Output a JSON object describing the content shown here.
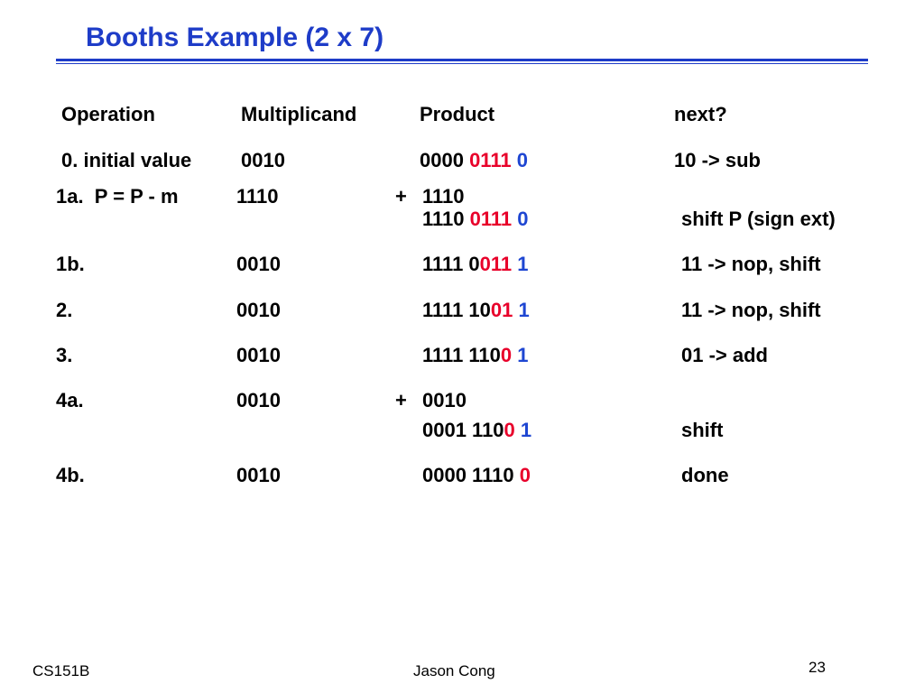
{
  "title": "Booths Example (2 x 7)",
  "table": {
    "header": [
      "Operation",
      "Multiplicand",
      "Product",
      "next?"
    ],
    "rows": [
      {
        "operation": "0. initial value",
        "multiplicand": "0010",
        "product": [
          [
            {
              "text": "0000 ",
              "color": "#000000"
            },
            {
              "text": "0111 ",
              "color": "#e8002a"
            },
            {
              "text": "0",
              "color": "#1e46d2"
            }
          ]
        ],
        "next": "10 -> sub"
      },
      {
        "operation": "1a.  P = P - m",
        "multiplicand": "1110",
        "sign": "+",
        "product": [
          [
            {
              "text": "1110",
              "color": "#000000"
            }
          ],
          [
            {
              "text": "1110 ",
              "color": "#000000"
            },
            {
              "text": "0111 ",
              "color": "#e8002a"
            },
            {
              "text": "0",
              "color": "#1e46d2"
            }
          ]
        ],
        "next": "shift P (sign ext)"
      },
      {
        "operation": "1b.",
        "multiplicand": "0010",
        "product": [
          [
            {
              "text": "1111 0",
              "color": "#000000"
            },
            {
              "text": "011 ",
              "color": "#e8002a"
            },
            {
              "text": "1",
              "color": "#1e46d2"
            }
          ]
        ],
        "next": "11 -> nop, shift"
      },
      {
        "operation": "2.",
        "multiplicand": "0010",
        "product": [
          [
            {
              "text": "1111 10",
              "color": "#000000"
            },
            {
              "text": "01 ",
              "color": "#e8002a"
            },
            {
              "text": "1",
              "color": "#1e46d2"
            }
          ]
        ],
        "next": "11 -> nop, shift"
      },
      {
        "operation": "3.",
        "multiplicand": "0010",
        "product": [
          [
            {
              "text": "1111 110",
              "color": "#000000"
            },
            {
              "text": "0 ",
              "color": "#e8002a"
            },
            {
              "text": "1",
              "color": "#1e46d2"
            }
          ]
        ],
        "next": "01 -> add"
      },
      {
        "operation": "4a.",
        "multiplicand": "0010",
        "sign": "+",
        "product": [
          [
            {
              "text": "0010",
              "color": "#000000"
            }
          ],
          [
            {
              "text": "0001 110",
              "color": "#000000"
            },
            {
              "text": "0 ",
              "color": "#e8002a"
            },
            {
              "text": "1",
              "color": "#1e46d2"
            }
          ]
        ],
        "next": "shift"
      },
      {
        "operation": "4b.",
        "multiplicand": "0010",
        "product": [
          [
            {
              "text": "0000 1110 ",
              "color": "#000000"
            },
            {
              "text": "0",
              "color": "#e8002a"
            }
          ]
        ],
        "next": "done"
      }
    ]
  },
  "footer": {
    "course": "CS151B",
    "author": "Jason Cong",
    "page": "23"
  }
}
